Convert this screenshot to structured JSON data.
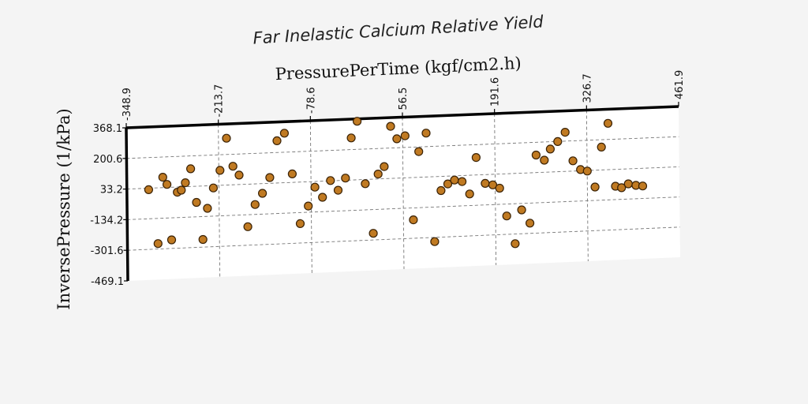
{
  "chart_data": {
    "type": "scatter",
    "title": "Far Inelastic Calcium Relative Yield",
    "xlabel": "PressurePerTime (kgf/cm2.h)",
    "ylabel": "InversePressure (1/kPa)",
    "x_ticks": [
      "-348.9",
      "-213.7",
      "-78.6",
      "56.5",
      "191.6",
      "326.7",
      "461.9"
    ],
    "y_ticks": [
      "368.1",
      "200.6",
      "33.2",
      "-134.2",
      "-301.6",
      "-469.1"
    ],
    "xlim": [
      -348.9,
      461.9
    ],
    "ylim": [
      -469.1,
      368.1
    ],
    "grid": true,
    "x_axis_position": "top",
    "point_color": "#c07a22",
    "x": [
      -317,
      -304,
      -296,
      -290,
      -284,
      -275,
      -269,
      -263,
      -255,
      -247,
      -238,
      -231,
      -222,
      -212,
      -202,
      -193,
      -184,
      -172,
      -161,
      -150,
      -139,
      -128,
      -117,
      -106,
      -95,
      -83,
      -73,
      -62,
      -50,
      -39,
      -28,
      -19,
      -10,
      1,
      12,
      20,
      29,
      39,
      48,
      60,
      71,
      80,
      91,
      102,
      112,
      122,
      132,
      143,
      154,
      164,
      177,
      188,
      198,
      208,
      220,
      230,
      242,
      252,
      264,
      273,
      284,
      295,
      306,
      317,
      327,
      338,
      348,
      358,
      368,
      377,
      387,
      398,
      408
    ],
    "y": [
      25,
      -272,
      90,
      50,
      -255,
      5,
      15,
      55,
      130,
      -55,
      -260,
      -90,
      20,
      115,
      290,
      135,
      85,
      -200,
      -80,
      -20,
      65,
      265,
      305,
      80,
      -195,
      -100,
      2,
      -55,
      35,
      -20,
      45,
      265,
      355,
      10,
      -265,
      60,
      100,
      320,
      250,
      265,
      -200,
      175,
      275,
      -325,
      -45,
      -10,
      10,
      0,
      -70,
      130,
      -15,
      -25,
      -45,
      -200,
      -355,
      -170,
      -245,
      130,
      100,
      160,
      200,
      250,
      90,
      40,
      30,
      -60,
      160,
      290,
      -60,
      -70,
      -50,
      -60,
      -65
    ]
  }
}
